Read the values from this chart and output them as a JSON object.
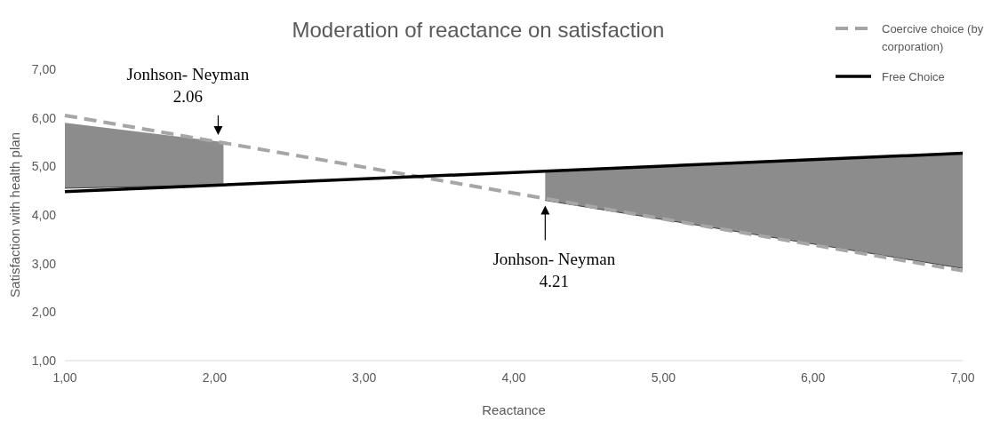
{
  "chart_data": {
    "type": "line",
    "title": "Moderation of reactance on satisfaction",
    "xlabel": "Reactance",
    "ylabel": "Satisfaction with health plan",
    "xlim": [
      1,
      7
    ],
    "ylim": [
      1,
      7
    ],
    "xticks": [
      {
        "value": 1,
        "label": "1,00"
      },
      {
        "value": 2,
        "label": "2,00"
      },
      {
        "value": 3,
        "label": "3,00"
      },
      {
        "value": 4,
        "label": "4,00"
      },
      {
        "value": 5,
        "label": "5,00"
      },
      {
        "value": 6,
        "label": "6,00"
      },
      {
        "value": 7,
        "label": "7,00"
      }
    ],
    "yticks": [
      {
        "value": 1,
        "label": "1,00"
      },
      {
        "value": 2,
        "label": "2,00"
      },
      {
        "value": 3,
        "label": "3,00"
      },
      {
        "value": 4,
        "label": "4,00"
      },
      {
        "value": 5,
        "label": "5,00"
      },
      {
        "value": 6,
        "label": "6,00"
      },
      {
        "value": 7,
        "label": "7,00"
      }
    ],
    "grid": false,
    "legend": "top right",
    "series": [
      {
        "type": "line",
        "color": "#404040",
        "x": [
          1,
          2.06
        ],
        "values": [
          4.55,
          4.62
        ],
        "lower": [
          4.55,
          4.62
        ],
        "upper": [
          5.9,
          5.5
        ]
      },
      {
        "type": "line",
        "color": "#404040",
        "x": [
          4.21,
          7
        ],
        "values": [
          4.3,
          2.9
        ],
        "lower": [
          4.3,
          2.9
        ],
        "upper": [
          4.88,
          5.25
        ]
      },
      {
        "type": "line",
        "name": "Coercive choice (by corporation)",
        "color": "#a6a6a6",
        "line_style": "dashed",
        "x": [
          1,
          7
        ],
        "values": [
          6.05,
          2.85
        ]
      },
      {
        "type": "line",
        "name": "Free Choice",
        "color": "#000000",
        "line_style": "solid",
        "x": [
          1,
          7
        ],
        "values": [
          4.48,
          5.27
        ]
      }
    ],
    "annotations": [
      {
        "text": "Jonhson- Neyman\n2.06",
        "x": 2.06,
        "y": 5.5
      },
      {
        "text": "Jonhson- Neyman\n4.21",
        "x": 4.21,
        "y": 4.3
      }
    ]
  }
}
